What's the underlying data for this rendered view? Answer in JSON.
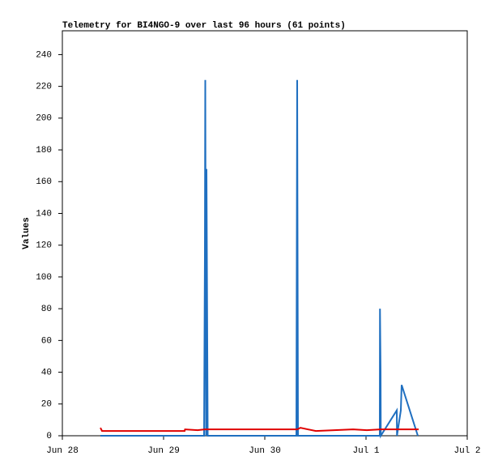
{
  "chart_data": {
    "type": "line",
    "title": "Telemetry for BI4NGO-9 over last 96 hours (61 points)",
    "y_label": "Values",
    "xlim": [
      0,
      4
    ],
    "xticks": [
      {
        "value": 0,
        "label": "Jun 28"
      },
      {
        "value": 1,
        "label": "Jun 29"
      },
      {
        "value": 2,
        "label": "Jun 30"
      },
      {
        "value": 3,
        "label": "Jul 1"
      },
      {
        "value": 4,
        "label": "Jul 2"
      }
    ],
    "ylim": [
      0,
      255
    ],
    "yticks": [
      0,
      20,
      40,
      60,
      80,
      100,
      120,
      140,
      160,
      180,
      200,
      220,
      240
    ],
    "series": [
      {
        "color": "#1f6fc0",
        "x": [
          0.376,
          1.4,
          1.408,
          1.412,
          1.42,
          1.424,
          1.432,
          1.436,
          2.312,
          2.316,
          2.32,
          2.328,
          3.136,
          3.138,
          3.144,
          3.146,
          3.304,
          3.306,
          3.344,
          3.352,
          3.512
        ],
        "values": [
          0,
          0,
          112,
          224,
          0,
          168,
          56,
          0,
          0,
          112,
          224,
          0,
          0,
          80,
          40,
          0,
          16,
          0,
          16,
          32,
          0
        ]
      },
      {
        "color": "#e00000",
        "x": [
          0.376,
          0.392,
          1.208,
          1.212,
          1.336,
          1.408,
          2.32,
          2.352,
          2.504,
          2.872,
          3.008,
          3.144,
          3.52
        ],
        "values": [
          5,
          3,
          3,
          4,
          3.5,
          4,
          4,
          5,
          3,
          4,
          3.5,
          4,
          4
        ]
      }
    ]
  }
}
